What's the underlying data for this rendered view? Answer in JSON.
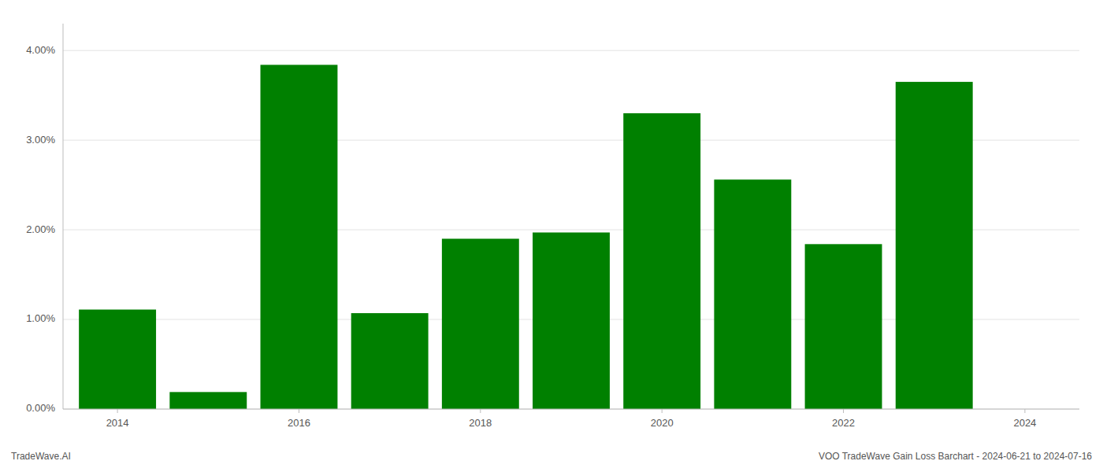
{
  "chart_data": {
    "type": "bar",
    "x": [
      2014,
      2015,
      2016,
      2017,
      2018,
      2019,
      2020,
      2021,
      2022,
      2023
    ],
    "values": [
      0.0111,
      0.0019,
      0.0384,
      0.0107,
      0.019,
      0.0197,
      0.033,
      0.0256,
      0.0184,
      0.0365
    ],
    "color": "#008000",
    "xlim": [
      2013.4,
      2024.6
    ],
    "xticks": [
      2014,
      2016,
      2018,
      2020,
      2022,
      2024
    ],
    "ylim": [
      0,
      0.043
    ],
    "yticks": [
      {
        "value": 0.0,
        "label": "0.00%"
      },
      {
        "value": 0.01,
        "label": "1.00%"
      },
      {
        "value": 0.02,
        "label": "2.00%"
      },
      {
        "value": 0.03,
        "label": "3.00%"
      },
      {
        "value": 0.04,
        "label": "4.00%"
      }
    ],
    "grid": true,
    "annotations": [
      "TradeWave.AI",
      "VOO TradeWave Gain Loss Barchart - 2024-06-21 to 2024-07-16"
    ]
  }
}
